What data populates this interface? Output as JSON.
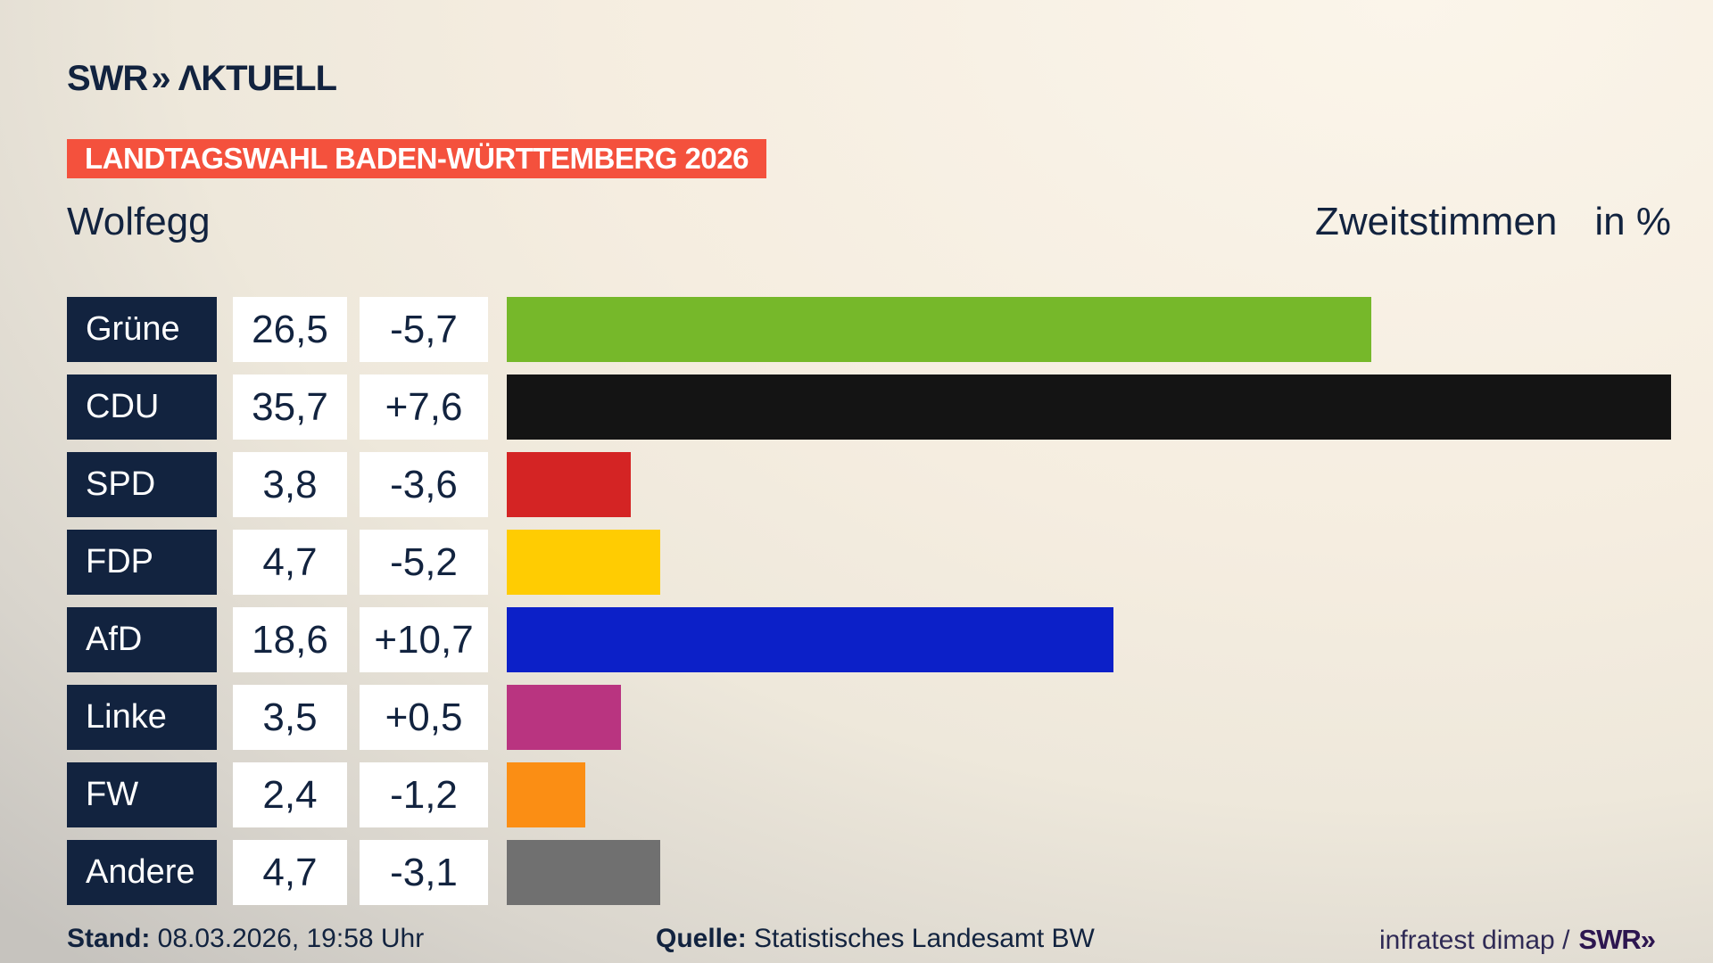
{
  "header": {
    "brand": "SWR",
    "brand_chevrons": "»",
    "brand_suffix_display": "ΛKTUELL",
    "brand_suffix": "AKTUELL",
    "banner": "LANDTAGSWAHL BADEN-WÜRTTEMBERG 2026",
    "municipality": "Wolfegg",
    "measure": "Zweitstimmen",
    "unit": "in %"
  },
  "chart_data": {
    "type": "bar",
    "title": "Landtagswahl Baden-Württemberg 2026 – Wolfegg – Zweitstimmen in %",
    "orientation": "horizontal",
    "categories": [
      "Grüne",
      "CDU",
      "SPD",
      "FDP",
      "AfD",
      "Linke",
      "FW",
      "Andere"
    ],
    "series": [
      {
        "name": "Zweitstimmen in %",
        "values": [
          26.5,
          35.7,
          3.8,
          4.7,
          18.6,
          3.5,
          2.4,
          4.7
        ]
      },
      {
        "name": "Veränderung in Prozentpunkten",
        "values": [
          -5.7,
          7.6,
          -3.6,
          -5.2,
          10.7,
          0.5,
          -1.2,
          -3.1
        ]
      }
    ],
    "value_labels": [
      "26,5",
      "35,7",
      "3,8",
      "4,7",
      "18,6",
      "3,5",
      "2,4",
      "4,7"
    ],
    "change_labels": [
      "-5,7",
      "+7,6",
      "-3,6",
      "-5,2",
      "+10,7",
      "+0,5",
      "-1,2",
      "-3,1"
    ],
    "bar_colors": [
      "#76b82a",
      "#141414",
      "#d42424",
      "#ffcc02",
      "#0c20c8",
      "#b93480",
      "#fb8e14",
      "#707070"
    ],
    "xlim": [
      0,
      35.7
    ],
    "grid": false,
    "legend": "none",
    "label_cell_color": "#12233f",
    "value_cell_color": "#ffffff"
  },
  "footer": {
    "stand_label": "Stand:",
    "stand_value": "08.03.2026, 19:58 Uhr",
    "quelle_label": "Quelle:",
    "quelle_value": "Statistisches Landesamt BW",
    "credit_text": "infratest dimap /",
    "credit_logo": "SWR»"
  },
  "colors": {
    "accent_banner": "#f4513d",
    "navy": "#12233f",
    "background_light": "#fbf5ea",
    "background_dark": "#c6c3be",
    "credit_purple": "#2d1650"
  }
}
